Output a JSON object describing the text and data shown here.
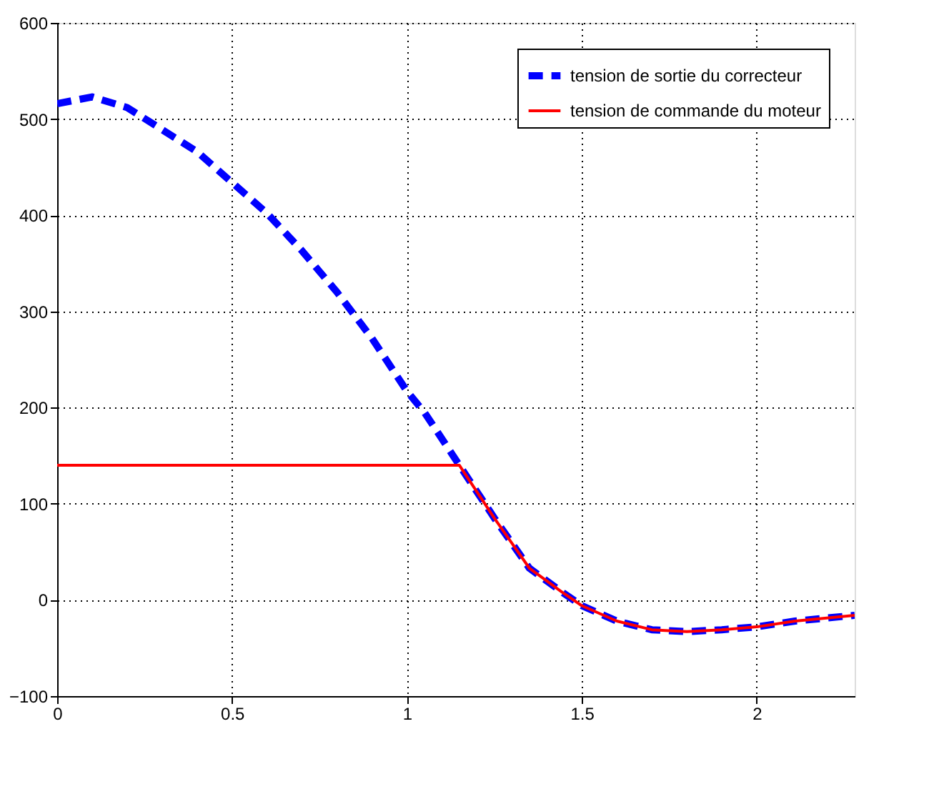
{
  "chart_data": {
    "type": "line",
    "xlim": [
      0,
      2.28
    ],
    "xticks": [
      0,
      0.5,
      1,
      1.5,
      2
    ],
    "ylim": [
      -100,
      600
    ],
    "yticks": [
      -100,
      0,
      100,
      200,
      300,
      400,
      500,
      600
    ],
    "grid": true,
    "legend": "top right",
    "series": [
      {
        "name": "tension de sortie du correcteur",
        "color": "#0000ff",
        "line_style": "dashed",
        "x": [
          0,
          0.1,
          0.2,
          0.3,
          0.4,
          0.5,
          0.6,
          0.7,
          0.8,
          0.9,
          1.0,
          1.05,
          1.15,
          1.25,
          1.35,
          1.44,
          1.5,
          1.6,
          1.7,
          1.8,
          1.9,
          2.0,
          2.11,
          2.28
        ],
        "values": [
          516,
          523,
          512,
          489,
          466,
          434,
          402,
          363,
          320,
          272,
          217,
          195,
          140,
          85,
          33,
          9,
          -6,
          -22,
          -31,
          -33,
          -31,
          -28,
          -22,
          -16
        ]
      },
      {
        "name": "tension de commande du moteur",
        "color": "#ff0000",
        "line_style": "solid",
        "x": [
          0,
          1.15,
          1.25,
          1.35,
          1.44,
          1.5,
          1.6,
          1.7,
          1.8,
          1.9,
          2.0,
          2.11,
          2.28
        ],
        "values": [
          140,
          140,
          85,
          33,
          9,
          -6,
          -22,
          -31,
          -33,
          -31,
          -28,
          -22,
          -16
        ]
      }
    ]
  }
}
